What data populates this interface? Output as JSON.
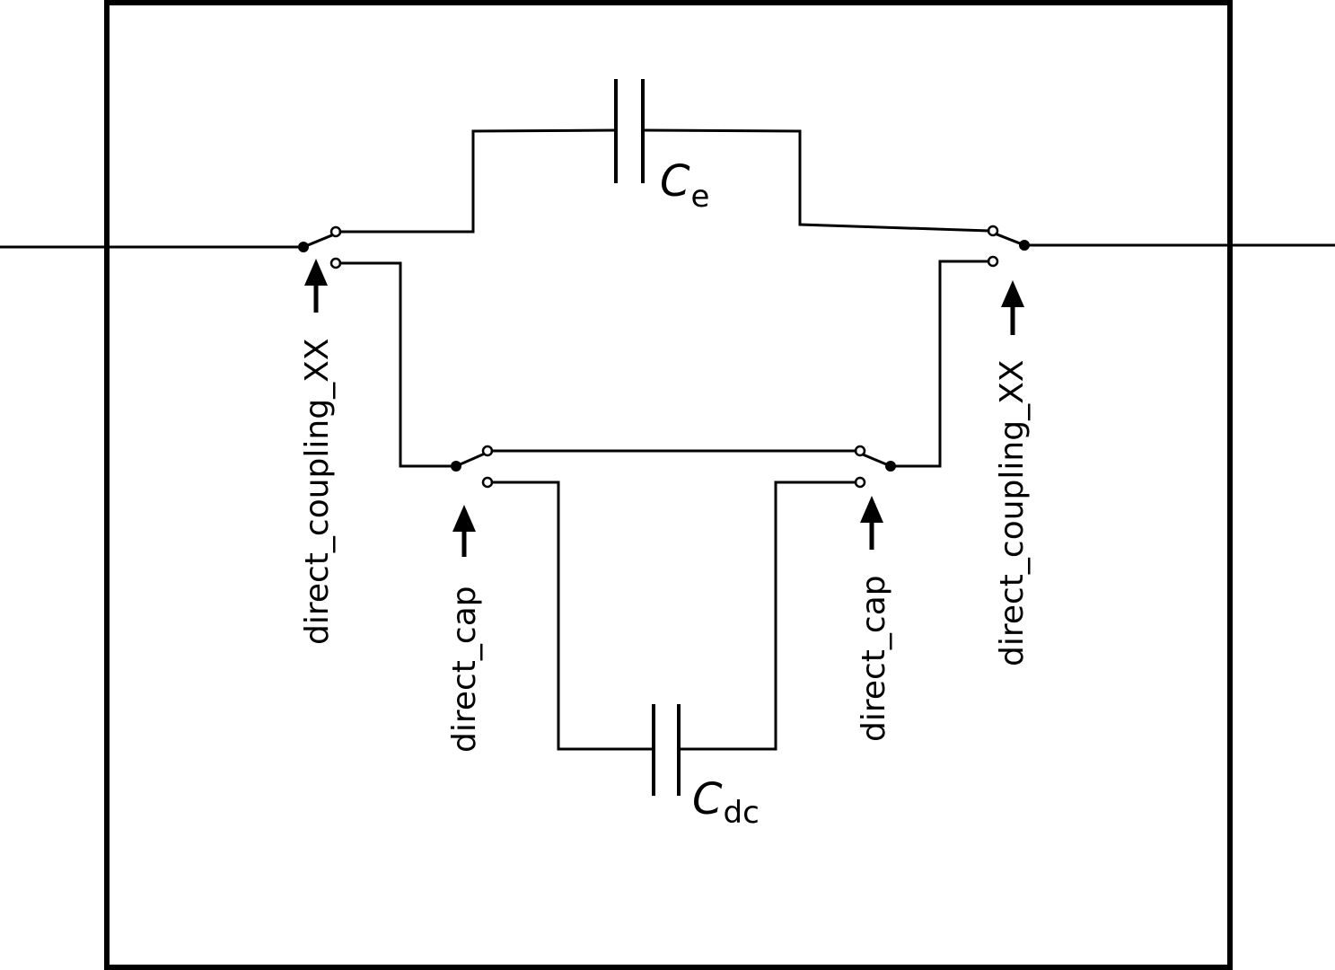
{
  "switch_labels": {
    "left_outer": "direct_coupling_XX",
    "right_outer": "direct_coupling_XX",
    "left_inner": "direct_cap",
    "right_inner": "direct_cap"
  },
  "capacitors": {
    "top": {
      "symbol": "C",
      "subscript": "e"
    },
    "bottom": {
      "symbol": "C",
      "subscript": "dc"
    }
  },
  "colors": {
    "line": "#000000",
    "background": "#ffffff"
  }
}
